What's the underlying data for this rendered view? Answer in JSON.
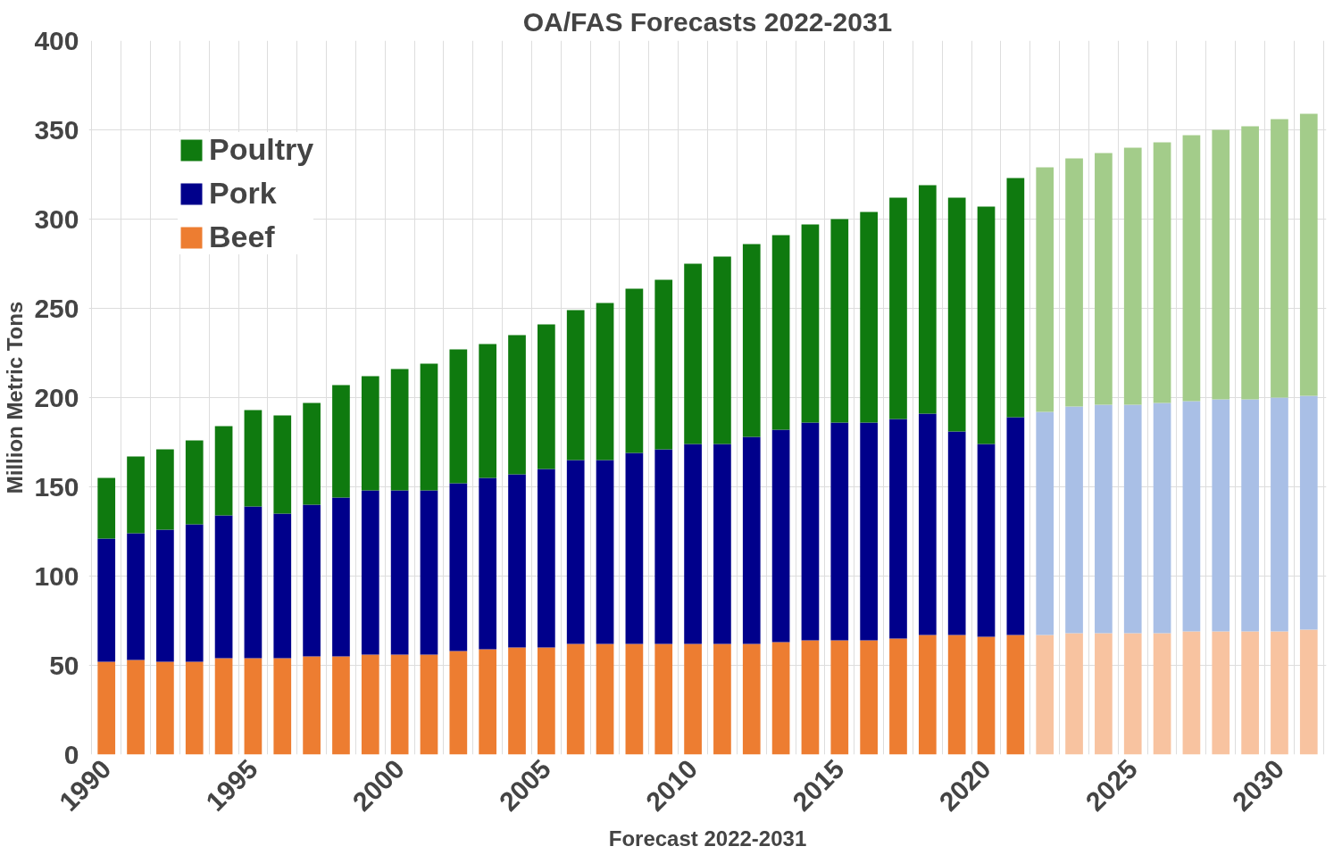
{
  "chart_data": {
    "type": "bar",
    "stacked": true,
    "title": "OA/FAS Forecasts 2022-2031",
    "xlabel": "Forecast 2022-2031",
    "ylabel": "Million Metric Tons",
    "categories": [
      "1990",
      null,
      null,
      null,
      null,
      "1995",
      null,
      null,
      null,
      null,
      "2000",
      null,
      null,
      null,
      null,
      "2005",
      null,
      null,
      null,
      null,
      "2010",
      null,
      null,
      null,
      null,
      "2015",
      null,
      null,
      null,
      null,
      "2020",
      null,
      null,
      null,
      null,
      "2025",
      null,
      null,
      null,
      null,
      "2030",
      null
    ],
    "series": [
      {
        "name": "Beef",
        "colors": [
          "#ed7d31",
          "#ed7d31",
          "#ed7d31",
          "#ed7d31",
          "#ed7d31",
          "#ed7d31",
          "#ed7d31",
          "#ed7d31",
          "#ed7d31",
          "#ed7d31",
          "#ed7d31",
          "#ed7d31",
          "#ed7d31",
          "#ed7d31",
          "#ed7d31",
          "#ed7d31",
          "#ed7d31",
          "#ed7d31",
          "#ed7d31",
          "#ed7d31",
          "#ed7d31",
          "#ed7d31",
          "#ed7d31",
          "#ed7d31",
          "#ed7d31",
          "#ed7d31",
          "#ed7d31",
          "#ed7d31",
          "#ed7d31",
          "#ed7d31",
          "#ed7d31",
          "#ed7d31",
          "#f8c3a0",
          "#f8c3a0",
          "#f8c3a0",
          "#f8c3a0",
          "#f8c3a0",
          "#f8c3a0",
          "#f8c3a0",
          "#f8c3a0",
          "#f8c3a0",
          "#f8c3a0"
        ],
        "values": [
          52,
          53,
          52,
          52,
          54,
          54,
          54,
          55,
          55,
          56,
          56,
          56,
          58,
          59,
          60,
          60,
          62,
          62,
          62,
          62,
          62,
          62,
          62,
          63,
          64,
          64,
          64,
          65,
          67,
          67,
          66,
          67,
          67,
          68,
          68,
          68,
          68,
          69,
          69,
          69,
          69,
          70
        ]
      },
      {
        "name": "Pork",
        "colors": [
          "#00008b",
          "#00008b",
          "#00008b",
          "#00008b",
          "#00008b",
          "#00008b",
          "#00008b",
          "#00008b",
          "#00008b",
          "#00008b",
          "#00008b",
          "#00008b",
          "#00008b",
          "#00008b",
          "#00008b",
          "#00008b",
          "#00008b",
          "#00008b",
          "#00008b",
          "#00008b",
          "#00008b",
          "#00008b",
          "#00008b",
          "#00008b",
          "#00008b",
          "#00008b",
          "#00008b",
          "#00008b",
          "#00008b",
          "#00008b",
          "#00008b",
          "#00008b",
          "#a9bfe6",
          "#a9bfe6",
          "#a9bfe6",
          "#a9bfe6",
          "#a9bfe6",
          "#a9bfe6",
          "#a9bfe6",
          "#a9bfe6",
          "#a9bfe6",
          "#a9bfe6"
        ],
        "values": [
          69,
          71,
          74,
          77,
          80,
          85,
          81,
          85,
          89,
          92,
          92,
          92,
          94,
          96,
          97,
          100,
          103,
          103,
          107,
          109,
          112,
          112,
          116,
          119,
          122,
          122,
          122,
          123,
          124,
          114,
          108,
          122,
          125,
          127,
          128,
          128,
          129,
          129,
          130,
          130,
          131,
          131
        ]
      },
      {
        "name": "Poultry",
        "colors": [
          "#0f7a0f",
          "#0f7a0f",
          "#0f7a0f",
          "#0f7a0f",
          "#0f7a0f",
          "#0f7a0f",
          "#0f7a0f",
          "#0f7a0f",
          "#0f7a0f",
          "#0f7a0f",
          "#0f7a0f",
          "#0f7a0f",
          "#0f7a0f",
          "#0f7a0f",
          "#0f7a0f",
          "#0f7a0f",
          "#0f7a0f",
          "#0f7a0f",
          "#0f7a0f",
          "#0f7a0f",
          "#0f7a0f",
          "#0f7a0f",
          "#0f7a0f",
          "#0f7a0f",
          "#0f7a0f",
          "#0f7a0f",
          "#0f7a0f",
          "#0f7a0f",
          "#0f7a0f",
          "#0f7a0f",
          "#0f7a0f",
          "#0f7a0f",
          "#a3cc8a",
          "#a3cc8a",
          "#a3cc8a",
          "#a3cc8a",
          "#a3cc8a",
          "#a3cc8a",
          "#a3cc8a",
          "#a3cc8a",
          "#a3cc8a",
          "#a3cc8a"
        ],
        "values": [
          34,
          43,
          45,
          47,
          50,
          54,
          55,
          57,
          63,
          64,
          68,
          71,
          75,
          75,
          78,
          81,
          84,
          88,
          92,
          95,
          101,
          105,
          108,
          109,
          111,
          114,
          118,
          124,
          128,
          131,
          133,
          134,
          137,
          139,
          141,
          144,
          146,
          149,
          151,
          153,
          156,
          158
        ]
      }
    ],
    "ylim": [
      0,
      400
    ],
    "yticks": [
      0,
      50,
      100,
      150,
      200,
      250,
      300,
      350,
      400
    ],
    "grid": true,
    "legend": "top left"
  }
}
